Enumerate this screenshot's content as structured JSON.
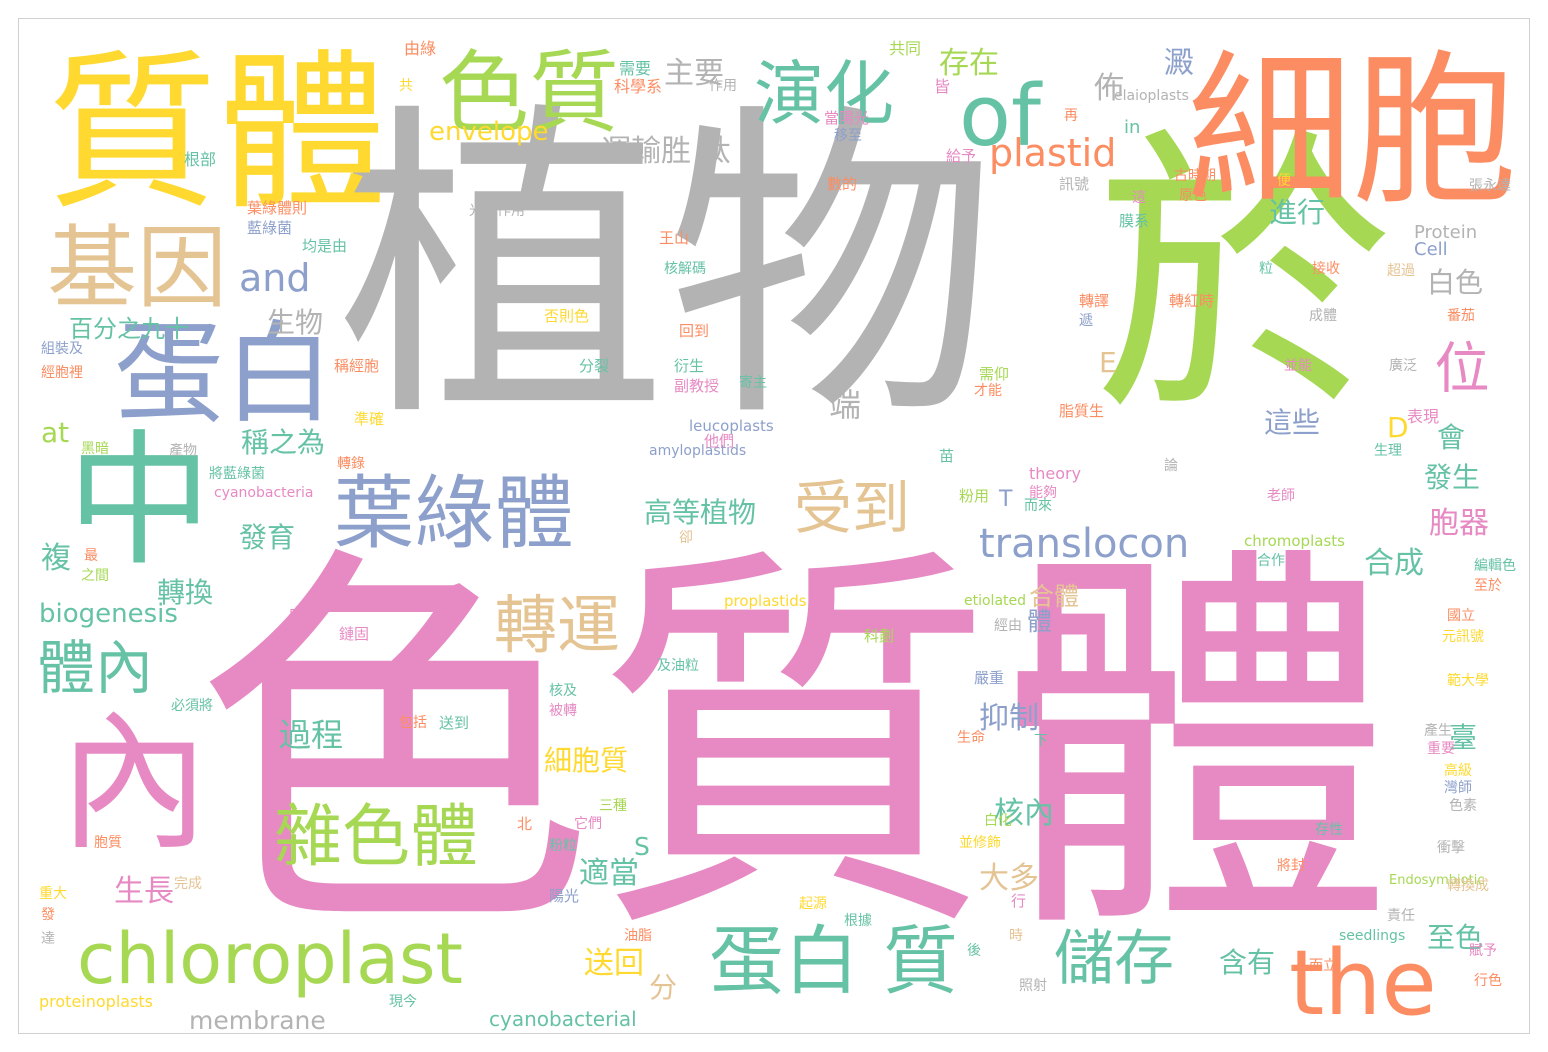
{
  "palette": {
    "pink": "#e78ac3",
    "gray": "#b3b3b3",
    "green": "#a6d854",
    "teal": "#66c2a5",
    "orange": "#fc8d62",
    "blue": "#8da0cb",
    "yellow": "#ffd92f",
    "tan": "#e5c494"
  },
  "words": [
    {
      "text": "色質體",
      "color": "pink"
    },
    {
      "text": "植物",
      "color": "gray"
    },
    {
      "text": "於",
      "color": "green"
    },
    {
      "text": "細胞",
      "color": "orange"
    },
    {
      "text": "質體",
      "color": "yellow"
    },
    {
      "text": "中",
      "color": "teal"
    },
    {
      "text": "內",
      "color": "pink"
    },
    {
      "text": "蛋白",
      "color": "blue"
    },
    {
      "text": "基因",
      "color": "tan"
    },
    {
      "text": "色質",
      "color": "green"
    },
    {
      "text": "of",
      "color": "teal"
    },
    {
      "text": "演化",
      "color": "teal"
    },
    {
      "text": "葉綠體",
      "color": "blue"
    },
    {
      "text": "chloroplast",
      "color": "green"
    },
    {
      "text": "the",
      "color": "orange"
    },
    {
      "text": "蛋白 質",
      "color": "teal"
    },
    {
      "text": "雜色體",
      "color": "green"
    },
    {
      "text": "轉運",
      "color": "tan"
    },
    {
      "text": "體內",
      "color": "teal"
    },
    {
      "text": "受到",
      "color": "tan"
    },
    {
      "text": "儲存",
      "color": "teal"
    },
    {
      "text": "translocon",
      "color": "blue"
    },
    {
      "text": "plastid",
      "color": "orange"
    },
    {
      "text": "位",
      "color": "pink"
    },
    {
      "text": "and",
      "color": "blue"
    },
    {
      "text": "運輸胜 肽",
      "color": "gray"
    },
    {
      "text": "主要",
      "color": "gray"
    },
    {
      "text": "存在",
      "color": "green"
    },
    {
      "text": "envelope",
      "color": "yellow"
    },
    {
      "text": "biogenesis",
      "color": "teal"
    },
    {
      "text": "百分之九十",
      "color": "teal"
    },
    {
      "text": "生物",
      "color": "gray"
    },
    {
      "text": "稱之為",
      "color": "teal"
    },
    {
      "text": "高等植物",
      "color": "teal"
    },
    {
      "text": "membrane",
      "color": "gray"
    },
    {
      "text": "cyanobacterial",
      "color": "teal"
    },
    {
      "text": "細胞質",
      "color": "yellow"
    },
    {
      "text": "過程",
      "color": "teal"
    },
    {
      "text": "抑制",
      "color": "blue"
    },
    {
      "text": "核內",
      "color": "teal"
    },
    {
      "text": "適當",
      "color": "teal"
    },
    {
      "text": "送回",
      "color": "yellow"
    },
    {
      "text": "大多",
      "color": "tan"
    },
    {
      "text": "進行",
      "color": "teal"
    },
    {
      "text": "這些",
      "color": "blue"
    },
    {
      "text": "發生",
      "color": "teal"
    },
    {
      "text": "合成",
      "color": "teal"
    },
    {
      "text": "合體",
      "color": "tan"
    },
    {
      "text": "含有",
      "color": "teal"
    },
    {
      "text": "至色",
      "color": "teal"
    },
    {
      "text": "胞器",
      "color": "pink"
    },
    {
      "text": "白色",
      "color": "gray"
    },
    {
      "text": "會",
      "color": "teal"
    },
    {
      "text": "轉換",
      "color": "teal"
    },
    {
      "text": "生長",
      "color": "pink"
    },
    {
      "text": "發育",
      "color": "teal"
    },
    {
      "text": "複",
      "color": "teal"
    },
    {
      "text": "端",
      "color": "gray"
    },
    {
      "text": "佈",
      "color": "gray"
    },
    {
      "text": "澱",
      "color": "blue"
    },
    {
      "text": "at",
      "color": "green"
    },
    {
      "text": "in",
      "color": "teal"
    },
    {
      "text": "E",
      "color": "tan"
    },
    {
      "text": "T",
      "color": "blue"
    },
    {
      "text": "S",
      "color": "teal"
    },
    {
      "text": "D",
      "color": "yellow"
    },
    {
      "text": "表現",
      "color": "pink"
    },
    {
      "text": "臺",
      "color": "teal"
    },
    {
      "text": "分",
      "color": "tan"
    },
    {
      "text": "體",
      "color": "blue"
    },
    {
      "text": "Protein",
      "color": "gray"
    },
    {
      "text": "Cell",
      "color": "blue"
    },
    {
      "text": "elaioplasts",
      "color": "gray"
    },
    {
      "text": "leucoplasts",
      "color": "blue"
    },
    {
      "text": "amyloplastids",
      "color": "blue"
    },
    {
      "text": "cyanobacteria",
      "color": "pink"
    },
    {
      "text": "proplastids",
      "color": "yellow"
    },
    {
      "text": "etiolated",
      "color": "green"
    },
    {
      "text": "chromoplasts",
      "color": "green"
    },
    {
      "text": "theory",
      "color": "pink"
    },
    {
      "text": "Endosymbiotic",
      "color": "green"
    },
    {
      "text": "seedlings",
      "color": "teal"
    },
    {
      "text": "proteinoplasts",
      "color": "yellow"
    },
    {
      "text": "由綠",
      "color": "orange"
    },
    {
      "text": "共同",
      "color": "green"
    },
    {
      "text": "需要",
      "color": "teal"
    },
    {
      "text": "科學系",
      "color": "orange"
    },
    {
      "text": "作用",
      "color": "gray"
    },
    {
      "text": "皆",
      "color": "pink"
    },
    {
      "text": "共",
      "color": "yellow"
    },
    {
      "text": "再",
      "color": "orange"
    },
    {
      "text": "根部",
      "color": "teal"
    },
    {
      "text": "當陽光",
      "color": "pink"
    },
    {
      "text": "移至",
      "color": "blue"
    },
    {
      "text": "給予",
      "color": "pink"
    },
    {
      "text": "數的",
      "color": "orange"
    },
    {
      "text": "光合作用",
      "color": "gray"
    },
    {
      "text": "葉綠體則",
      "color": "orange"
    },
    {
      "text": "藍綠菌",
      "color": "blue"
    },
    {
      "text": "均是由",
      "color": "teal"
    },
    {
      "text": "王山",
      "color": "orange"
    },
    {
      "text": "訊號",
      "color": "gray"
    },
    {
      "text": "這",
      "color": "pink"
    },
    {
      "text": "古時期",
      "color": "orange"
    },
    {
      "text": "原色",
      "color": "orange"
    },
    {
      "text": "便",
      "color": "yellow"
    },
    {
      "text": "張永達",
      "color": "gray"
    },
    {
      "text": "膜系",
      "color": "teal"
    },
    {
      "text": "核解碼",
      "color": "teal"
    },
    {
      "text": "粒",
      "color": "teal"
    },
    {
      "text": "超過",
      "color": "tan"
    },
    {
      "text": "接收",
      "color": "orange"
    },
    {
      "text": "否則色",
      "color": "yellow"
    },
    {
      "text": "回到",
      "color": "orange"
    },
    {
      "text": "轉譯",
      "color": "orange"
    },
    {
      "text": "轉紅時",
      "color": "orange"
    },
    {
      "text": "遞",
      "color": "blue"
    },
    {
      "text": "成體",
      "color": "gray"
    },
    {
      "text": "番茄",
      "color": "orange"
    },
    {
      "text": "組裝及",
      "color": "blue"
    },
    {
      "text": "分裂",
      "color": "teal"
    },
    {
      "text": "衍生",
      "color": "teal"
    },
    {
      "text": "經胞裡",
      "color": "orange"
    },
    {
      "text": "副教授",
      "color": "pink"
    },
    {
      "text": "寄主",
      "color": "teal"
    },
    {
      "text": "需仰",
      "color": "green"
    },
    {
      "text": "才能",
      "color": "orange"
    },
    {
      "text": "並能",
      "color": "pink"
    },
    {
      "text": "廣泛",
      "color": "gray"
    },
    {
      "text": "稱經胞",
      "color": "orange"
    },
    {
      "text": "準確",
      "color": "yellow"
    },
    {
      "text": "他們",
      "color": "pink"
    },
    {
      "text": "脂質生",
      "color": "orange"
    },
    {
      "text": "黑暗",
      "color": "green"
    },
    {
      "text": "產物",
      "color": "gray"
    },
    {
      "text": "將藍綠菌",
      "color": "teal"
    },
    {
      "text": "轉錄",
      "color": "orange"
    },
    {
      "text": "苗",
      "color": "teal"
    },
    {
      "text": "論",
      "color": "gray"
    },
    {
      "text": "生理",
      "color": "teal"
    },
    {
      "text": "粉用",
      "color": "green"
    },
    {
      "text": "能夠",
      "color": "pink"
    },
    {
      "text": "而來",
      "color": "teal"
    },
    {
      "text": "老師",
      "color": "pink"
    },
    {
      "text": "最",
      "color": "orange"
    },
    {
      "text": "之間",
      "color": "green"
    },
    {
      "text": "卻",
      "color": "tan"
    },
    {
      "text": "合作",
      "color": "teal"
    },
    {
      "text": "編輯色",
      "color": "teal"
    },
    {
      "text": "至於",
      "color": "orange"
    },
    {
      "text": "中學",
      "color": "pink"
    },
    {
      "text": "鏈固",
      "color": "pink"
    },
    {
      "text": "科劃",
      "color": "green"
    },
    {
      "text": "經由",
      "color": "gray"
    },
    {
      "text": "國立",
      "color": "orange"
    },
    {
      "text": "元訊號",
      "color": "yellow"
    },
    {
      "text": "唯一",
      "color": "pink"
    },
    {
      "text": "及油粒",
      "color": "teal"
    },
    {
      "text": "嚴重",
      "color": "blue"
    },
    {
      "text": "範大學",
      "color": "yellow"
    },
    {
      "text": "必須將",
      "color": "teal"
    },
    {
      "text": "核及",
      "color": "teal"
    },
    {
      "text": "包括",
      "color": "orange"
    },
    {
      "text": "送到",
      "color": "teal"
    },
    {
      "text": "被轉",
      "color": "pink"
    },
    {
      "text": "生命",
      "color": "orange"
    },
    {
      "text": "下",
      "color": "teal"
    },
    {
      "text": "產生",
      "color": "gray"
    },
    {
      "text": "重要",
      "color": "pink"
    },
    {
      "text": "高級",
      "color": "yellow"
    },
    {
      "text": "灣師",
      "color": "blue"
    },
    {
      "text": "色素",
      "color": "gray"
    },
    {
      "text": "胞質",
      "color": "orange"
    },
    {
      "text": "北",
      "color": "orange"
    },
    {
      "text": "它們",
      "color": "pink"
    },
    {
      "text": "三種",
      "color": "green"
    },
    {
      "text": "粉粒",
      "color": "teal"
    },
    {
      "text": "並修飾",
      "color": "yellow"
    },
    {
      "text": "白化",
      "color": "green"
    },
    {
      "text": "存性",
      "color": "teal"
    },
    {
      "text": "衝擊",
      "color": "gray"
    },
    {
      "text": "將封",
      "color": "orange"
    },
    {
      "text": "轉換成",
      "color": "tan"
    },
    {
      "text": "重大",
      "color": "yellow"
    },
    {
      "text": "發",
      "color": "orange"
    },
    {
      "text": "達",
      "color": "gray"
    },
    {
      "text": "完成",
      "color": "tan"
    },
    {
      "text": "陽光",
      "color": "blue"
    },
    {
      "text": "起源",
      "color": "yellow"
    },
    {
      "text": "行",
      "color": "pink"
    },
    {
      "text": "根據",
      "color": "teal"
    },
    {
      "text": "油脂",
      "color": "orange"
    },
    {
      "text": "時",
      "color": "tan"
    },
    {
      "text": "後",
      "color": "teal"
    },
    {
      "text": "責任",
      "color": "gray"
    },
    {
      "text": "賦予",
      "color": "pink"
    },
    {
      "text": "而立",
      "color": "orange"
    },
    {
      "text": "行色",
      "color": "orange"
    },
    {
      "text": "現今",
      "color": "teal"
    },
    {
      "text": "照射",
      "color": "gray"
    }
  ]
}
